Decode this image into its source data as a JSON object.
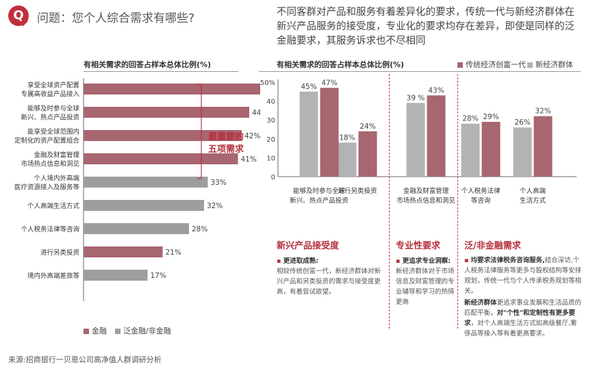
{
  "header": {
    "badge": "Q",
    "question": "问题：您个人综合需求有哪些?",
    "intro": "不同客群对产品和服务有着差异化的要求，传统一代与新经济群体在新兴产品服务的接受度，专业化的要求均存在差异，即使是同样的泛金融要求，其服务诉求也不尽相同"
  },
  "colors": {
    "finance": "#a76670",
    "non_finance": "#9e9e9e",
    "accent": "#b5313d",
    "new_economy": "#b3b3b3"
  },
  "highlight_note": [
    "最重要的",
    "五项需求"
  ],
  "chart_data": [
    {
      "type": "bar",
      "orientation": "horizontal",
      "title": "有相关需求的回答占样本总体比例(%)",
      "categories": [
        [
          "享受全球资产配置",
          "专属高收益产品接入"
        ],
        [
          "能够及时参与全球",
          "新兴、热点产品投资"
        ],
        [
          "能享受全球范围内",
          "定制化的资产配置组合"
        ],
        [
          "金融及财富管理",
          "市场热点信息和洞见"
        ],
        [
          "个人境内外高端",
          "医疗资源接入及服务等"
        ],
        [
          "个人高端生活方式"
        ],
        [
          "个人税务法律等咨询"
        ],
        [
          "进行另类投资"
        ],
        [
          "境内外高端差旅等"
        ]
      ],
      "values": [
        51,
        44,
        42,
        41,
        33,
        32,
        28,
        21,
        17
      ],
      "groups": [
        "金融",
        "金融",
        "金融",
        "金融",
        "泛金融/非金融",
        "泛金融/非金融",
        "泛金融/非金融",
        "金融",
        "泛金融/非金融"
      ],
      "legend": [
        "金融",
        "泛金融/非金融"
      ],
      "xlim": [
        0,
        60
      ]
    },
    {
      "type": "bar",
      "title": "有相关需求的回答占样本总体比例(%)",
      "categories": [
        [
          "能够及时参与全球",
          "新兴、热点产品投资"
        ],
        [
          "进行另类投资"
        ],
        [
          "金融及财富管理",
          "市场热点信息和洞见"
        ],
        [
          "个人税务法律",
          "等咨询"
        ],
        [
          "个人高端",
          "生活方式"
        ]
      ],
      "series": [
        {
          "name": "新经济群体",
          "values": [
            45,
            18,
            39,
            28,
            26
          ],
          "labels": [
            "45%",
            "18%",
            "39 %",
            "28%",
            "26%"
          ]
        },
        {
          "name": "传统经济创富一代",
          "values": [
            47,
            24,
            43,
            29,
            32
          ],
          "labels": [
            "47%",
            "24%",
            "43%",
            "29%",
            "32%"
          ]
        }
      ],
      "legend": [
        "传统经济创富一代",
        "新经济群体"
      ],
      "yticks": [
        "50%",
        "40",
        "30",
        "20",
        "10",
        "0"
      ],
      "ylim": [
        0,
        50
      ]
    }
  ],
  "sections": [
    {
      "title": "新兴产品接受度",
      "sub": "更进取成熟:",
      "body": "相较传统创富一代，新经济群体对新兴产品和另类投资的需求与接受度更高，有着尝试欲望。"
    },
    {
      "title": "专业性要求",
      "sub": "更追求专业洞察:",
      "body": "新经济群体对于市场信息及财富管理的专业辅导和学习的热情更高"
    },
    {
      "title": "泛/非金融需求",
      "sub": "均要求法律税务咨询服务,",
      "sub_tail": "结合深访,个人税务法律服务等更多与股权结构等安排规划，传统一代与个人传承税务规划等相关。",
      "p2_bold": "新经济群体",
      "p2_mid": "更追求事业发展和生活品质的匹配平衡，",
      "p2_bold2": "对\"个性\"和定制性有更多要求",
      "p2_tail": "，对个人高端生活方式如高级餐厅,奢侈品等接入等有着更高要求。"
    }
  ],
  "source": "来源:招商银行一贝恩公司高净值人群调研分析"
}
